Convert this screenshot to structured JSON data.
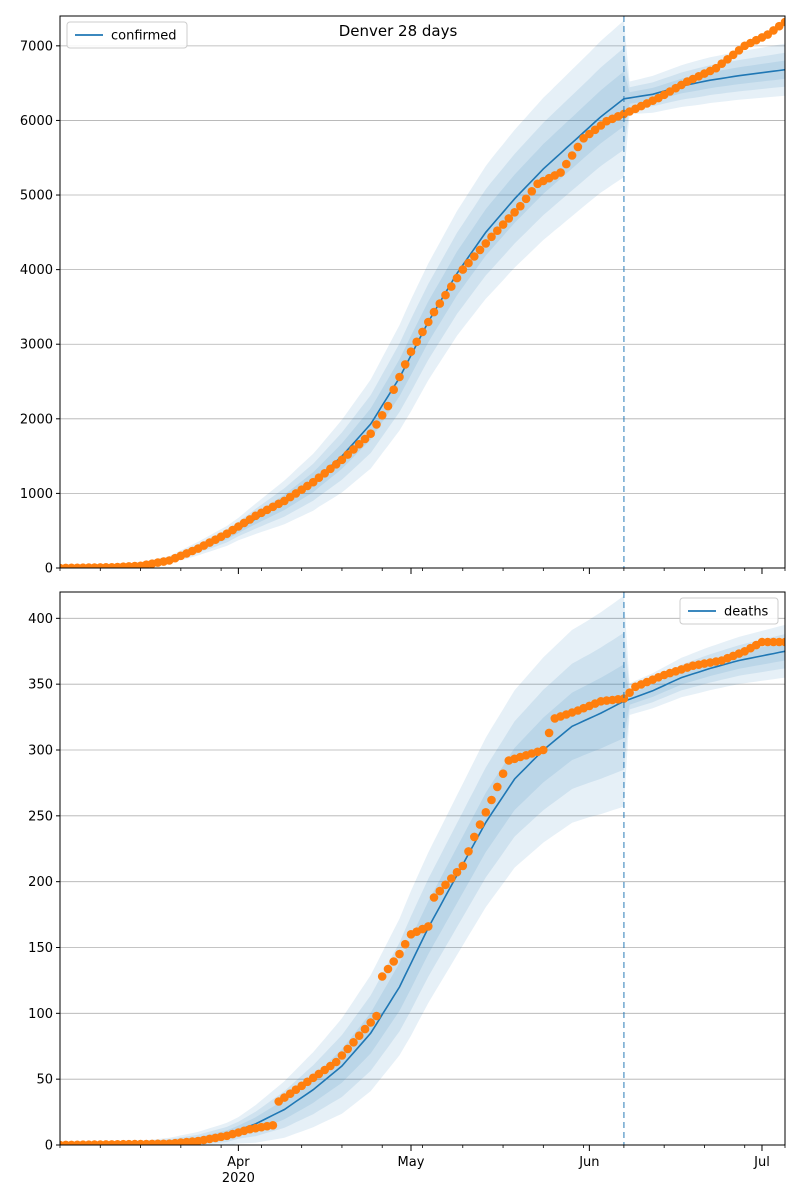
{
  "figure": {
    "title": "Denver 28 days"
  },
  "colors": {
    "model": "#1f77b4",
    "observed": "#ff7f0e",
    "band": "#1f77b4",
    "grid": "#b0b0b0"
  },
  "chart_data": [
    {
      "type": "line",
      "panel": "top",
      "title": "Denver 28 days",
      "series_label": "confirmed",
      "legend_position": "top-left",
      "grid": "horizontal",
      "x_start": "2020-03-01",
      "x_end": "2020-07-05",
      "forecast_split": "2020-06-07",
      "ylim": [
        0,
        7400
      ],
      "yticks": [
        0,
        1000,
        2000,
        3000,
        4000,
        5000,
        6000,
        7000
      ],
      "xticks": [
        {
          "date": "2020-04-01",
          "label": "Apr",
          "sublabel": "2020"
        },
        {
          "date": "2020-05-01",
          "label": "May",
          "sublabel": ""
        },
        {
          "date": "2020-06-01",
          "label": "Jun",
          "sublabel": ""
        },
        {
          "date": "2020-07-01",
          "label": "Jul",
          "sublabel": ""
        }
      ],
      "model_curve": [
        {
          "x": "2020-03-01",
          "y": 0
        },
        {
          "x": "2020-03-10",
          "y": 10
        },
        {
          "x": "2020-03-15",
          "y": 40
        },
        {
          "x": "2020-03-20",
          "y": 110
        },
        {
          "x": "2020-03-25",
          "y": 260
        },
        {
          "x": "2020-03-30",
          "y": 430
        },
        {
          "x": "2020-04-04",
          "y": 660
        },
        {
          "x": "2020-04-09",
          "y": 880
        },
        {
          "x": "2020-04-14",
          "y": 1150
        },
        {
          "x": "2020-04-19",
          "y": 1500
        },
        {
          "x": "2020-04-24",
          "y": 1930
        },
        {
          "x": "2020-04-29",
          "y": 2550
        },
        {
          "x": "2020-05-04",
          "y": 3300
        },
        {
          "x": "2020-05-09",
          "y": 3950
        },
        {
          "x": "2020-05-14",
          "y": 4500
        },
        {
          "x": "2020-05-19",
          "y": 4950
        },
        {
          "x": "2020-05-24",
          "y": 5350
        },
        {
          "x": "2020-05-29",
          "y": 5700
        },
        {
          "x": "2020-06-03",
          "y": 6050
        },
        {
          "x": "2020-06-07",
          "y": 6290
        },
        {
          "x": "2020-06-12",
          "y": 6350
        },
        {
          "x": "2020-06-17",
          "y": 6460
        },
        {
          "x": "2020-06-22",
          "y": 6540
        },
        {
          "x": "2020-06-27",
          "y": 6600
        },
        {
          "x": "2020-07-05",
          "y": 6680
        }
      ],
      "band_spread": [
        {
          "x": "2020-03-01",
          "s": 0
        },
        {
          "x": "2020-03-20",
          "s": 50
        },
        {
          "x": "2020-04-01",
          "s": 150
        },
        {
          "x": "2020-04-15",
          "s": 400
        },
        {
          "x": "2020-05-01",
          "s": 750
        },
        {
          "x": "2020-05-15",
          "s": 900
        },
        {
          "x": "2020-06-01",
          "s": 1000
        },
        {
          "x": "2020-06-07",
          "s": 1050
        },
        {
          "x": "2020-06-08",
          "s": 220
        },
        {
          "x": "2020-06-20",
          "s": 300
        },
        {
          "x": "2020-07-05",
          "s": 350
        }
      ],
      "observed": [
        {
          "x": "2020-03-01",
          "y": 0
        },
        {
          "x": "2020-03-10",
          "y": 10
        },
        {
          "x": "2020-03-15",
          "y": 30
        },
        {
          "x": "2020-03-20",
          "y": 100
        },
        {
          "x": "2020-03-25",
          "y": 260
        },
        {
          "x": "2020-03-30",
          "y": 460
        },
        {
          "x": "2020-04-04",
          "y": 700
        },
        {
          "x": "2020-04-09",
          "y": 900
        },
        {
          "x": "2020-04-14",
          "y": 1150
        },
        {
          "x": "2020-04-19",
          "y": 1450
        },
        {
          "x": "2020-04-24",
          "y": 1800
        },
        {
          "x": "2020-04-27",
          "y": 2170
        },
        {
          "x": "2020-04-28",
          "y": 2390
        },
        {
          "x": "2020-05-01",
          "y": 2900
        },
        {
          "x": "2020-05-05",
          "y": 3430
        },
        {
          "x": "2020-05-10",
          "y": 4000
        },
        {
          "x": "2020-05-15",
          "y": 4440
        },
        {
          "x": "2020-05-20",
          "y": 4850
        },
        {
          "x": "2020-05-23",
          "y": 5150
        },
        {
          "x": "2020-05-27",
          "y": 5300
        },
        {
          "x": "2020-05-31",
          "y": 5760
        },
        {
          "x": "2020-06-04",
          "y": 5990
        },
        {
          "x": "2020-06-08",
          "y": 6120
        },
        {
          "x": "2020-06-13",
          "y": 6300
        },
        {
          "x": "2020-06-18",
          "y": 6520
        },
        {
          "x": "2020-06-23",
          "y": 6700
        },
        {
          "x": "2020-06-28",
          "y": 7000
        },
        {
          "x": "2020-07-02",
          "y": 7150
        },
        {
          "x": "2020-07-05",
          "y": 7320
        }
      ]
    },
    {
      "type": "line",
      "panel": "bottom",
      "series_label": "deaths",
      "legend_position": "top-right",
      "grid": "horizontal",
      "x_start": "2020-03-01",
      "x_end": "2020-07-05",
      "forecast_split": "2020-06-07",
      "ylim": [
        0,
        420
      ],
      "yticks": [
        0,
        50,
        100,
        150,
        200,
        250,
        300,
        350,
        400
      ],
      "xticks": [
        {
          "date": "2020-04-01",
          "label": "Apr",
          "sublabel": "2020"
        },
        {
          "date": "2020-05-01",
          "label": "May",
          "sublabel": ""
        },
        {
          "date": "2020-06-01",
          "label": "Jun",
          "sublabel": ""
        },
        {
          "date": "2020-07-01",
          "label": "Jul",
          "sublabel": ""
        }
      ],
      "model_curve": [
        {
          "x": "2020-03-01",
          "y": 0
        },
        {
          "x": "2020-03-15",
          "y": 1
        },
        {
          "x": "2020-03-25",
          "y": 4
        },
        {
          "x": "2020-03-30",
          "y": 8
        },
        {
          "x": "2020-04-04",
          "y": 16
        },
        {
          "x": "2020-04-09",
          "y": 27
        },
        {
          "x": "2020-04-14",
          "y": 42
        },
        {
          "x": "2020-04-19",
          "y": 60
        },
        {
          "x": "2020-04-24",
          "y": 85
        },
        {
          "x": "2020-04-29",
          "y": 120
        },
        {
          "x": "2020-05-04",
          "y": 165
        },
        {
          "x": "2020-05-09",
          "y": 205
        },
        {
          "x": "2020-05-14",
          "y": 245
        },
        {
          "x": "2020-05-19",
          "y": 278
        },
        {
          "x": "2020-05-24",
          "y": 300
        },
        {
          "x": "2020-05-29",
          "y": 318
        },
        {
          "x": "2020-06-03",
          "y": 328
        },
        {
          "x": "2020-06-07",
          "y": 337
        },
        {
          "x": "2020-06-12",
          "y": 345
        },
        {
          "x": "2020-06-17",
          "y": 355
        },
        {
          "x": "2020-06-22",
          "y": 362
        },
        {
          "x": "2020-06-27",
          "y": 368
        },
        {
          "x": "2020-07-05",
          "y": 375
        }
      ],
      "band_spread": [
        {
          "x": "2020-03-01",
          "s": 0
        },
        {
          "x": "2020-03-20",
          "s": 3
        },
        {
          "x": "2020-04-01",
          "s": 10
        },
        {
          "x": "2020-04-15",
          "s": 30
        },
        {
          "x": "2020-05-01",
          "s": 55
        },
        {
          "x": "2020-05-15",
          "s": 65
        },
        {
          "x": "2020-06-01",
          "s": 75
        },
        {
          "x": "2020-06-07",
          "s": 80
        },
        {
          "x": "2020-06-08",
          "s": 12
        },
        {
          "x": "2020-06-20",
          "s": 16
        },
        {
          "x": "2020-07-05",
          "s": 20
        }
      ],
      "observed": [
        {
          "x": "2020-03-01",
          "y": 0
        },
        {
          "x": "2020-03-20",
          "y": 1
        },
        {
          "x": "2020-03-25",
          "y": 3
        },
        {
          "x": "2020-03-30",
          "y": 7
        },
        {
          "x": "2020-04-03",
          "y": 12
        },
        {
          "x": "2020-04-07",
          "y": 15
        },
        {
          "x": "2020-04-08",
          "y": 33
        },
        {
          "x": "2020-04-13",
          "y": 48
        },
        {
          "x": "2020-04-18",
          "y": 63
        },
        {
          "x": "2020-04-22",
          "y": 83
        },
        {
          "x": "2020-04-25",
          "y": 98
        },
        {
          "x": "2020-04-26",
          "y": 128
        },
        {
          "x": "2020-04-29",
          "y": 145
        },
        {
          "x": "2020-05-01",
          "y": 160
        },
        {
          "x": "2020-05-04",
          "y": 166
        },
        {
          "x": "2020-05-05",
          "y": 188
        },
        {
          "x": "2020-05-10",
          "y": 212
        },
        {
          "x": "2020-05-12",
          "y": 234
        },
        {
          "x": "2020-05-15",
          "y": 262
        },
        {
          "x": "2020-05-18",
          "y": 292
        },
        {
          "x": "2020-05-24",
          "y": 300
        },
        {
          "x": "2020-05-25",
          "y": 313
        },
        {
          "x": "2020-05-26",
          "y": 324
        },
        {
          "x": "2020-05-30",
          "y": 330
        },
        {
          "x": "2020-06-03",
          "y": 337
        },
        {
          "x": "2020-06-07",
          "y": 339
        },
        {
          "x": "2020-06-09",
          "y": 348
        },
        {
          "x": "2020-06-14",
          "y": 357
        },
        {
          "x": "2020-06-19",
          "y": 364
        },
        {
          "x": "2020-06-24",
          "y": 368
        },
        {
          "x": "2020-06-28",
          "y": 375
        },
        {
          "x": "2020-07-01",
          "y": 382
        },
        {
          "x": "2020-07-05",
          "y": 382
        }
      ]
    }
  ]
}
